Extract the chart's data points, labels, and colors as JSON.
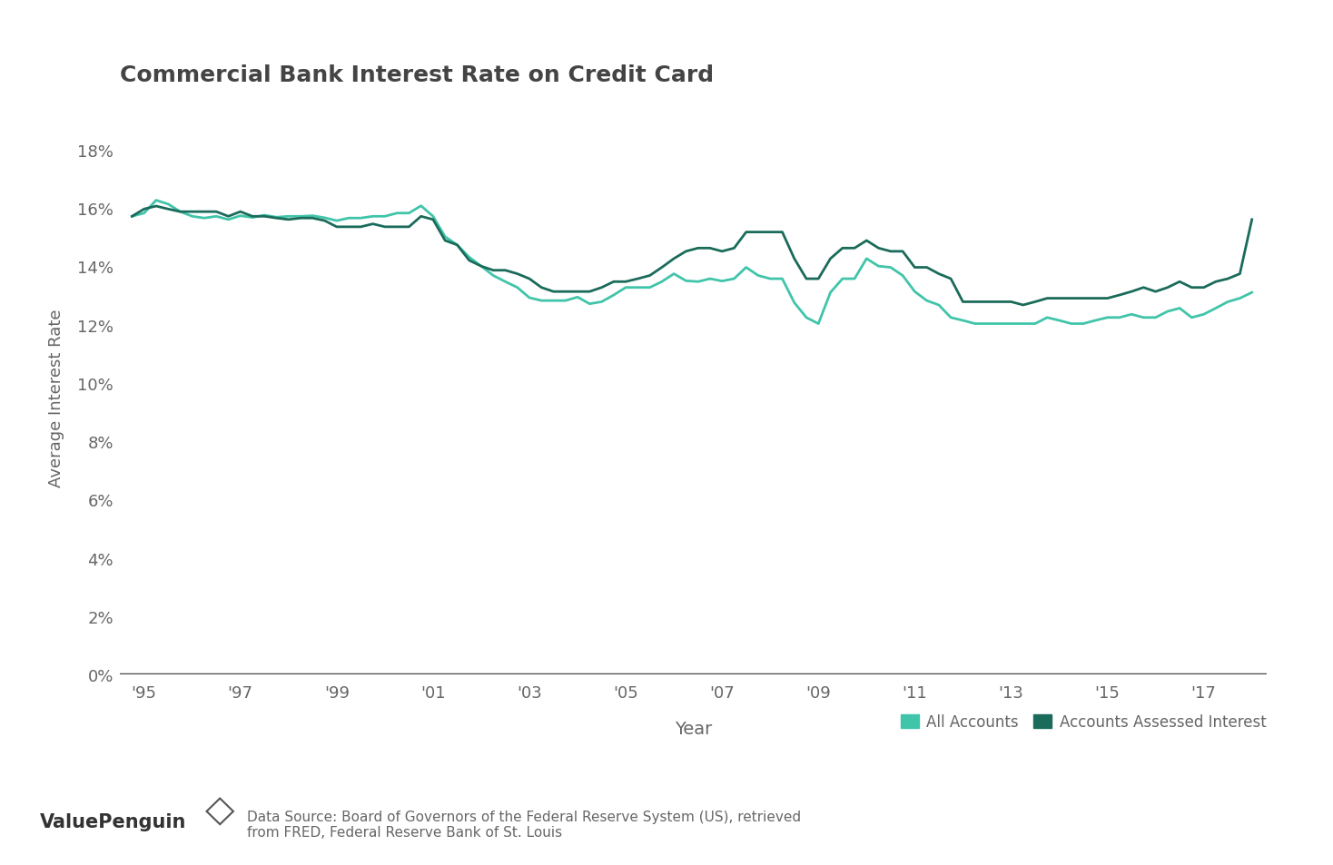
{
  "title": "Commercial Bank Interest Rate on Credit Card",
  "xlabel": "Year",
  "ylabel": "Average Interest Rate",
  "background_color": "#ffffff",
  "title_color": "#444444",
  "axis_label_color": "#666666",
  "tick_color": "#666666",
  "line_color_all": "#40c4aa",
  "line_color_assessed": "#1a6b5a",
  "legend_label_all": "All Accounts",
  "legend_label_assessed": "Accounts Assessed Interest",
  "source_text": "Data Source: Board of Governors of the Federal Reserve System (US), retrieved\nfrom FRED, Federal Reserve Bank of St. Louis",
  "yticks": [
    0,
    2,
    4,
    6,
    8,
    10,
    12,
    14,
    16,
    18
  ],
  "xtick_labels": [
    "'95",
    "'97",
    "'99",
    "'01",
    "'03",
    "'05",
    "'07",
    "'09",
    "'11",
    "'13",
    "'15",
    "'17"
  ],
  "xtick_positions": [
    1995,
    1997,
    1999,
    2001,
    2003,
    2005,
    2007,
    2009,
    2011,
    2013,
    2015,
    2017
  ],
  "all_accounts_x": [
    1994.75,
    1995.0,
    1995.25,
    1995.5,
    1995.75,
    1996.0,
    1996.25,
    1996.5,
    1996.75,
    1997.0,
    1997.25,
    1997.5,
    1997.75,
    1998.0,
    1998.25,
    1998.5,
    1998.75,
    1999.0,
    1999.25,
    1999.5,
    1999.75,
    2000.0,
    2000.25,
    2000.5,
    2000.75,
    2001.0,
    2001.25,
    2001.5,
    2001.75,
    2002.0,
    2002.25,
    2002.5,
    2002.75,
    2003.0,
    2003.25,
    2003.5,
    2003.75,
    2004.0,
    2004.25,
    2004.5,
    2004.75,
    2005.0,
    2005.25,
    2005.5,
    2005.75,
    2006.0,
    2006.25,
    2006.5,
    2006.75,
    2007.0,
    2007.25,
    2007.5,
    2007.75,
    2008.0,
    2008.25,
    2008.5,
    2008.75,
    2009.0,
    2009.25,
    2009.5,
    2009.75,
    2010.0,
    2010.25,
    2010.5,
    2010.75,
    2011.0,
    2011.25,
    2011.5,
    2011.75,
    2012.0,
    2012.25,
    2012.5,
    2012.75,
    2013.0,
    2013.25,
    2013.5,
    2013.75,
    2014.0,
    2014.25,
    2014.5,
    2014.75,
    2015.0,
    2015.25,
    2015.5,
    2015.75,
    2016.0,
    2016.25,
    2016.5,
    2016.75,
    2017.0,
    2017.25,
    2017.5,
    2017.75,
    2018.0
  ],
  "all_accounts_y": [
    15.71,
    15.82,
    16.26,
    16.13,
    15.87,
    15.71,
    15.65,
    15.71,
    15.6,
    15.73,
    15.67,
    15.75,
    15.68,
    15.71,
    15.71,
    15.73,
    15.66,
    15.56,
    15.65,
    15.65,
    15.71,
    15.71,
    15.82,
    15.82,
    16.07,
    15.71,
    15.01,
    14.73,
    14.31,
    14.0,
    13.68,
    13.47,
    13.27,
    12.92,
    12.82,
    12.82,
    12.82,
    12.94,
    12.71,
    12.78,
    13.01,
    13.27,
    13.27,
    13.27,
    13.47,
    13.74,
    13.5,
    13.47,
    13.57,
    13.49,
    13.57,
    13.96,
    13.68,
    13.57,
    13.57,
    12.75,
    12.24,
    12.03,
    13.1,
    13.57,
    13.57,
    14.26,
    14.0,
    13.96,
    13.68,
    13.13,
    12.82,
    12.67,
    12.24,
    12.14,
    12.03,
    12.03,
    12.03,
    12.03,
    12.03,
    12.03,
    12.24,
    12.14,
    12.03,
    12.03,
    12.14,
    12.24,
    12.24,
    12.35,
    12.24,
    12.24,
    12.45,
    12.56,
    12.24,
    12.35,
    12.56,
    12.78,
    12.9,
    13.1
  ],
  "assessed_x": [
    1994.75,
    1995.0,
    1995.25,
    1995.5,
    1995.75,
    1996.0,
    1996.25,
    1996.5,
    1996.75,
    1997.0,
    1997.25,
    1997.5,
    1997.75,
    1998.0,
    1998.25,
    1998.5,
    1998.75,
    1999.0,
    1999.25,
    1999.5,
    1999.75,
    2000.0,
    2000.25,
    2000.5,
    2000.75,
    2001.0,
    2001.25,
    2001.5,
    2001.75,
    2002.0,
    2002.25,
    2002.5,
    2002.75,
    2003.0,
    2003.25,
    2003.5,
    2003.75,
    2004.0,
    2004.25,
    2004.5,
    2004.75,
    2005.0,
    2005.25,
    2005.5,
    2005.75,
    2006.0,
    2006.25,
    2006.5,
    2006.75,
    2007.0,
    2007.25,
    2007.5,
    2007.75,
    2008.0,
    2008.25,
    2008.5,
    2008.75,
    2009.0,
    2009.25,
    2009.5,
    2009.75,
    2010.0,
    2010.25,
    2010.5,
    2010.75,
    2011.0,
    2011.25,
    2011.5,
    2011.75,
    2012.0,
    2012.25,
    2012.5,
    2012.75,
    2013.0,
    2013.25,
    2013.5,
    2013.75,
    2014.0,
    2014.25,
    2014.5,
    2014.75,
    2015.0,
    2015.25,
    2015.5,
    2015.75,
    2016.0,
    2016.25,
    2016.5,
    2016.75,
    2017.0,
    2017.25,
    2017.5,
    2017.75,
    2018.0
  ],
  "assessed_y": [
    15.71,
    15.96,
    16.06,
    15.96,
    15.87,
    15.87,
    15.87,
    15.87,
    15.71,
    15.87,
    15.71,
    15.71,
    15.65,
    15.6,
    15.65,
    15.65,
    15.56,
    15.35,
    15.35,
    15.35,
    15.45,
    15.35,
    15.35,
    15.35,
    15.71,
    15.6,
    14.88,
    14.73,
    14.2,
    14.0,
    13.86,
    13.86,
    13.74,
    13.57,
    13.27,
    13.13,
    13.13,
    13.13,
    13.13,
    13.27,
    13.47,
    13.47,
    13.57,
    13.68,
    13.96,
    14.26,
    14.51,
    14.62,
    14.62,
    14.51,
    14.62,
    15.17,
    15.17,
    15.17,
    15.17,
    14.26,
    13.57,
    13.57,
    14.26,
    14.62,
    14.62,
    14.88,
    14.62,
    14.51,
    14.51,
    13.96,
    13.96,
    13.74,
    13.57,
    12.78,
    12.78,
    12.78,
    12.78,
    12.78,
    12.67,
    12.78,
    12.9,
    12.9,
    12.9,
    12.9,
    12.9,
    12.9,
    13.01,
    13.13,
    13.27,
    13.13,
    13.27,
    13.47,
    13.27,
    13.27,
    13.47,
    13.57,
    13.74,
    15.6
  ],
  "ylim": [
    0,
    19
  ],
  "xlim": [
    1994.5,
    2018.3
  ],
  "linewidth": 2.0
}
